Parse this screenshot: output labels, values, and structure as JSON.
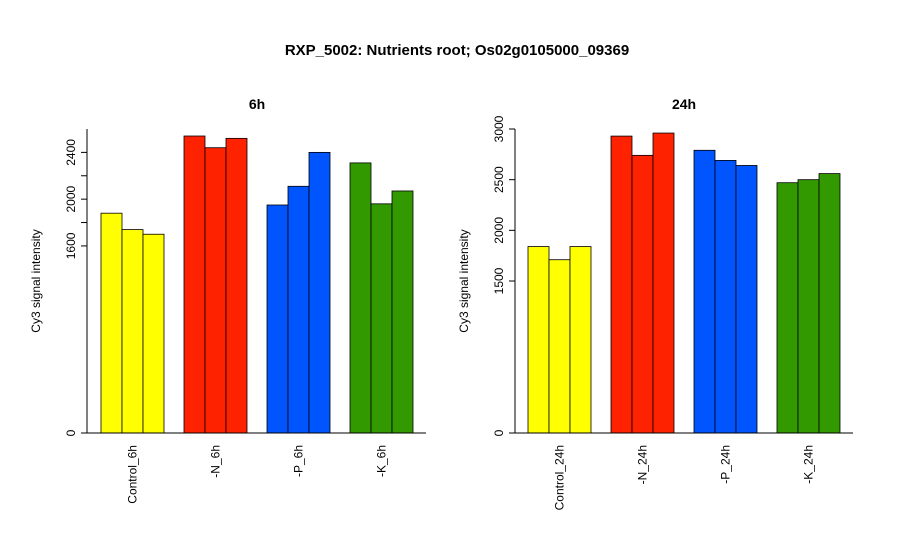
{
  "title": "RXP_5002: Nutrients root; Os02g0105000_09369",
  "chart_data": [
    {
      "type": "bar",
      "title": "6h",
      "ylabel": "Cy3 signal intensity",
      "categories": [
        "Control_6h",
        "-N_6h",
        "-P_6h",
        "-K_6h"
      ],
      "ylim": [
        0,
        2600
      ],
      "yticks": [
        0,
        1600,
        2000,
        2400
      ],
      "y_axis_minor_ticks": [
        1800,
        2200
      ],
      "colors": [
        "#ffff00",
        "#ff2200",
        "#0055ff",
        "#339900"
      ],
      "values": [
        [
          1880,
          1740,
          1700
        ],
        [
          2540,
          2440,
          2520
        ],
        [
          1950,
          2110,
          2400
        ],
        [
          2310,
          1960,
          2070
        ]
      ]
    },
    {
      "type": "bar",
      "title": "24h",
      "ylabel": "Cy3 signal intensity",
      "categories": [
        "Control_24h",
        "-N_24h",
        "-P_24h",
        "-K_24h"
      ],
      "ylim": [
        0,
        3000
      ],
      "yticks": [
        0,
        1500,
        2000,
        2500,
        3000
      ],
      "colors": [
        "#ffff00",
        "#ff2200",
        "#0055ff",
        "#339900"
      ],
      "values": [
        [
          1840,
          1710,
          1840
        ],
        [
          2930,
          2740,
          2960
        ],
        [
          2790,
          2690,
          2640
        ],
        [
          2470,
          2500,
          2560
        ]
      ]
    }
  ]
}
